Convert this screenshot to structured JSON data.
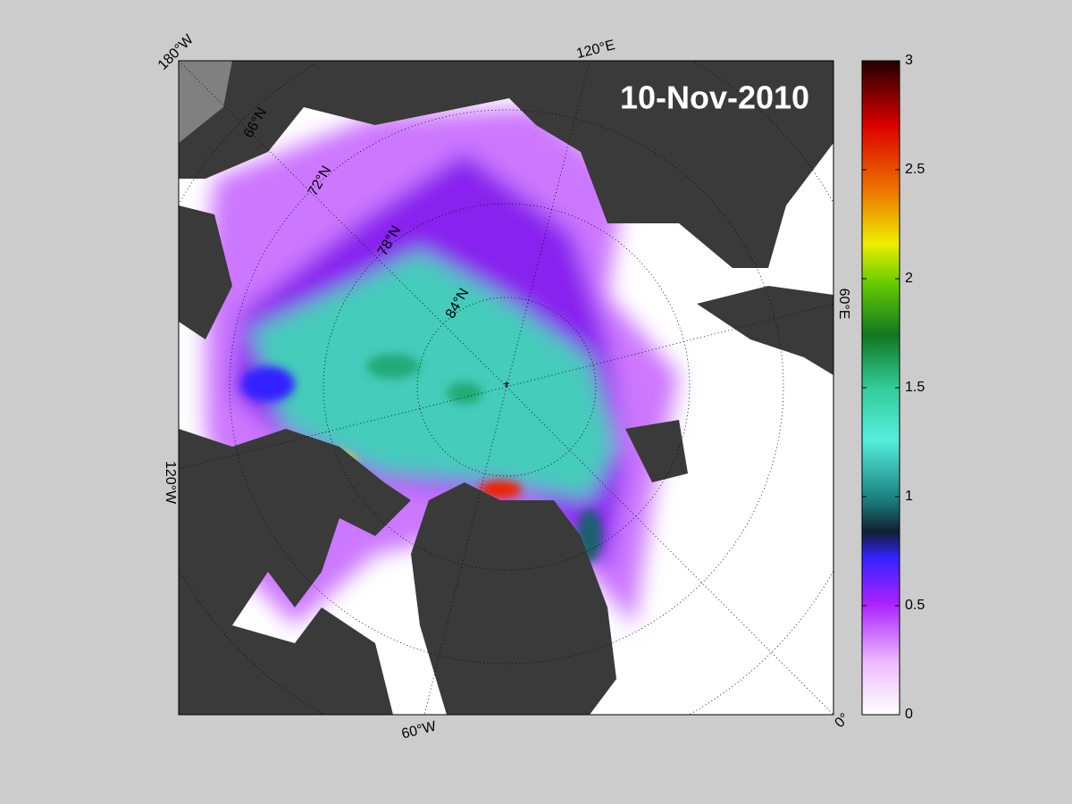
{
  "title": "10-Nov-2010",
  "longitude_labels": [
    "180°W",
    "120°E",
    "60°E",
    "0°",
    "60°W",
    "120°W"
  ],
  "latitude_labels": [
    "66°N",
    "72°N",
    "78°N",
    "84°N"
  ],
  "colorbar": {
    "lim": [
      0,
      3
    ],
    "ticks": [
      0,
      0.5,
      1,
      1.5,
      2,
      2.5,
      3
    ]
  }
}
